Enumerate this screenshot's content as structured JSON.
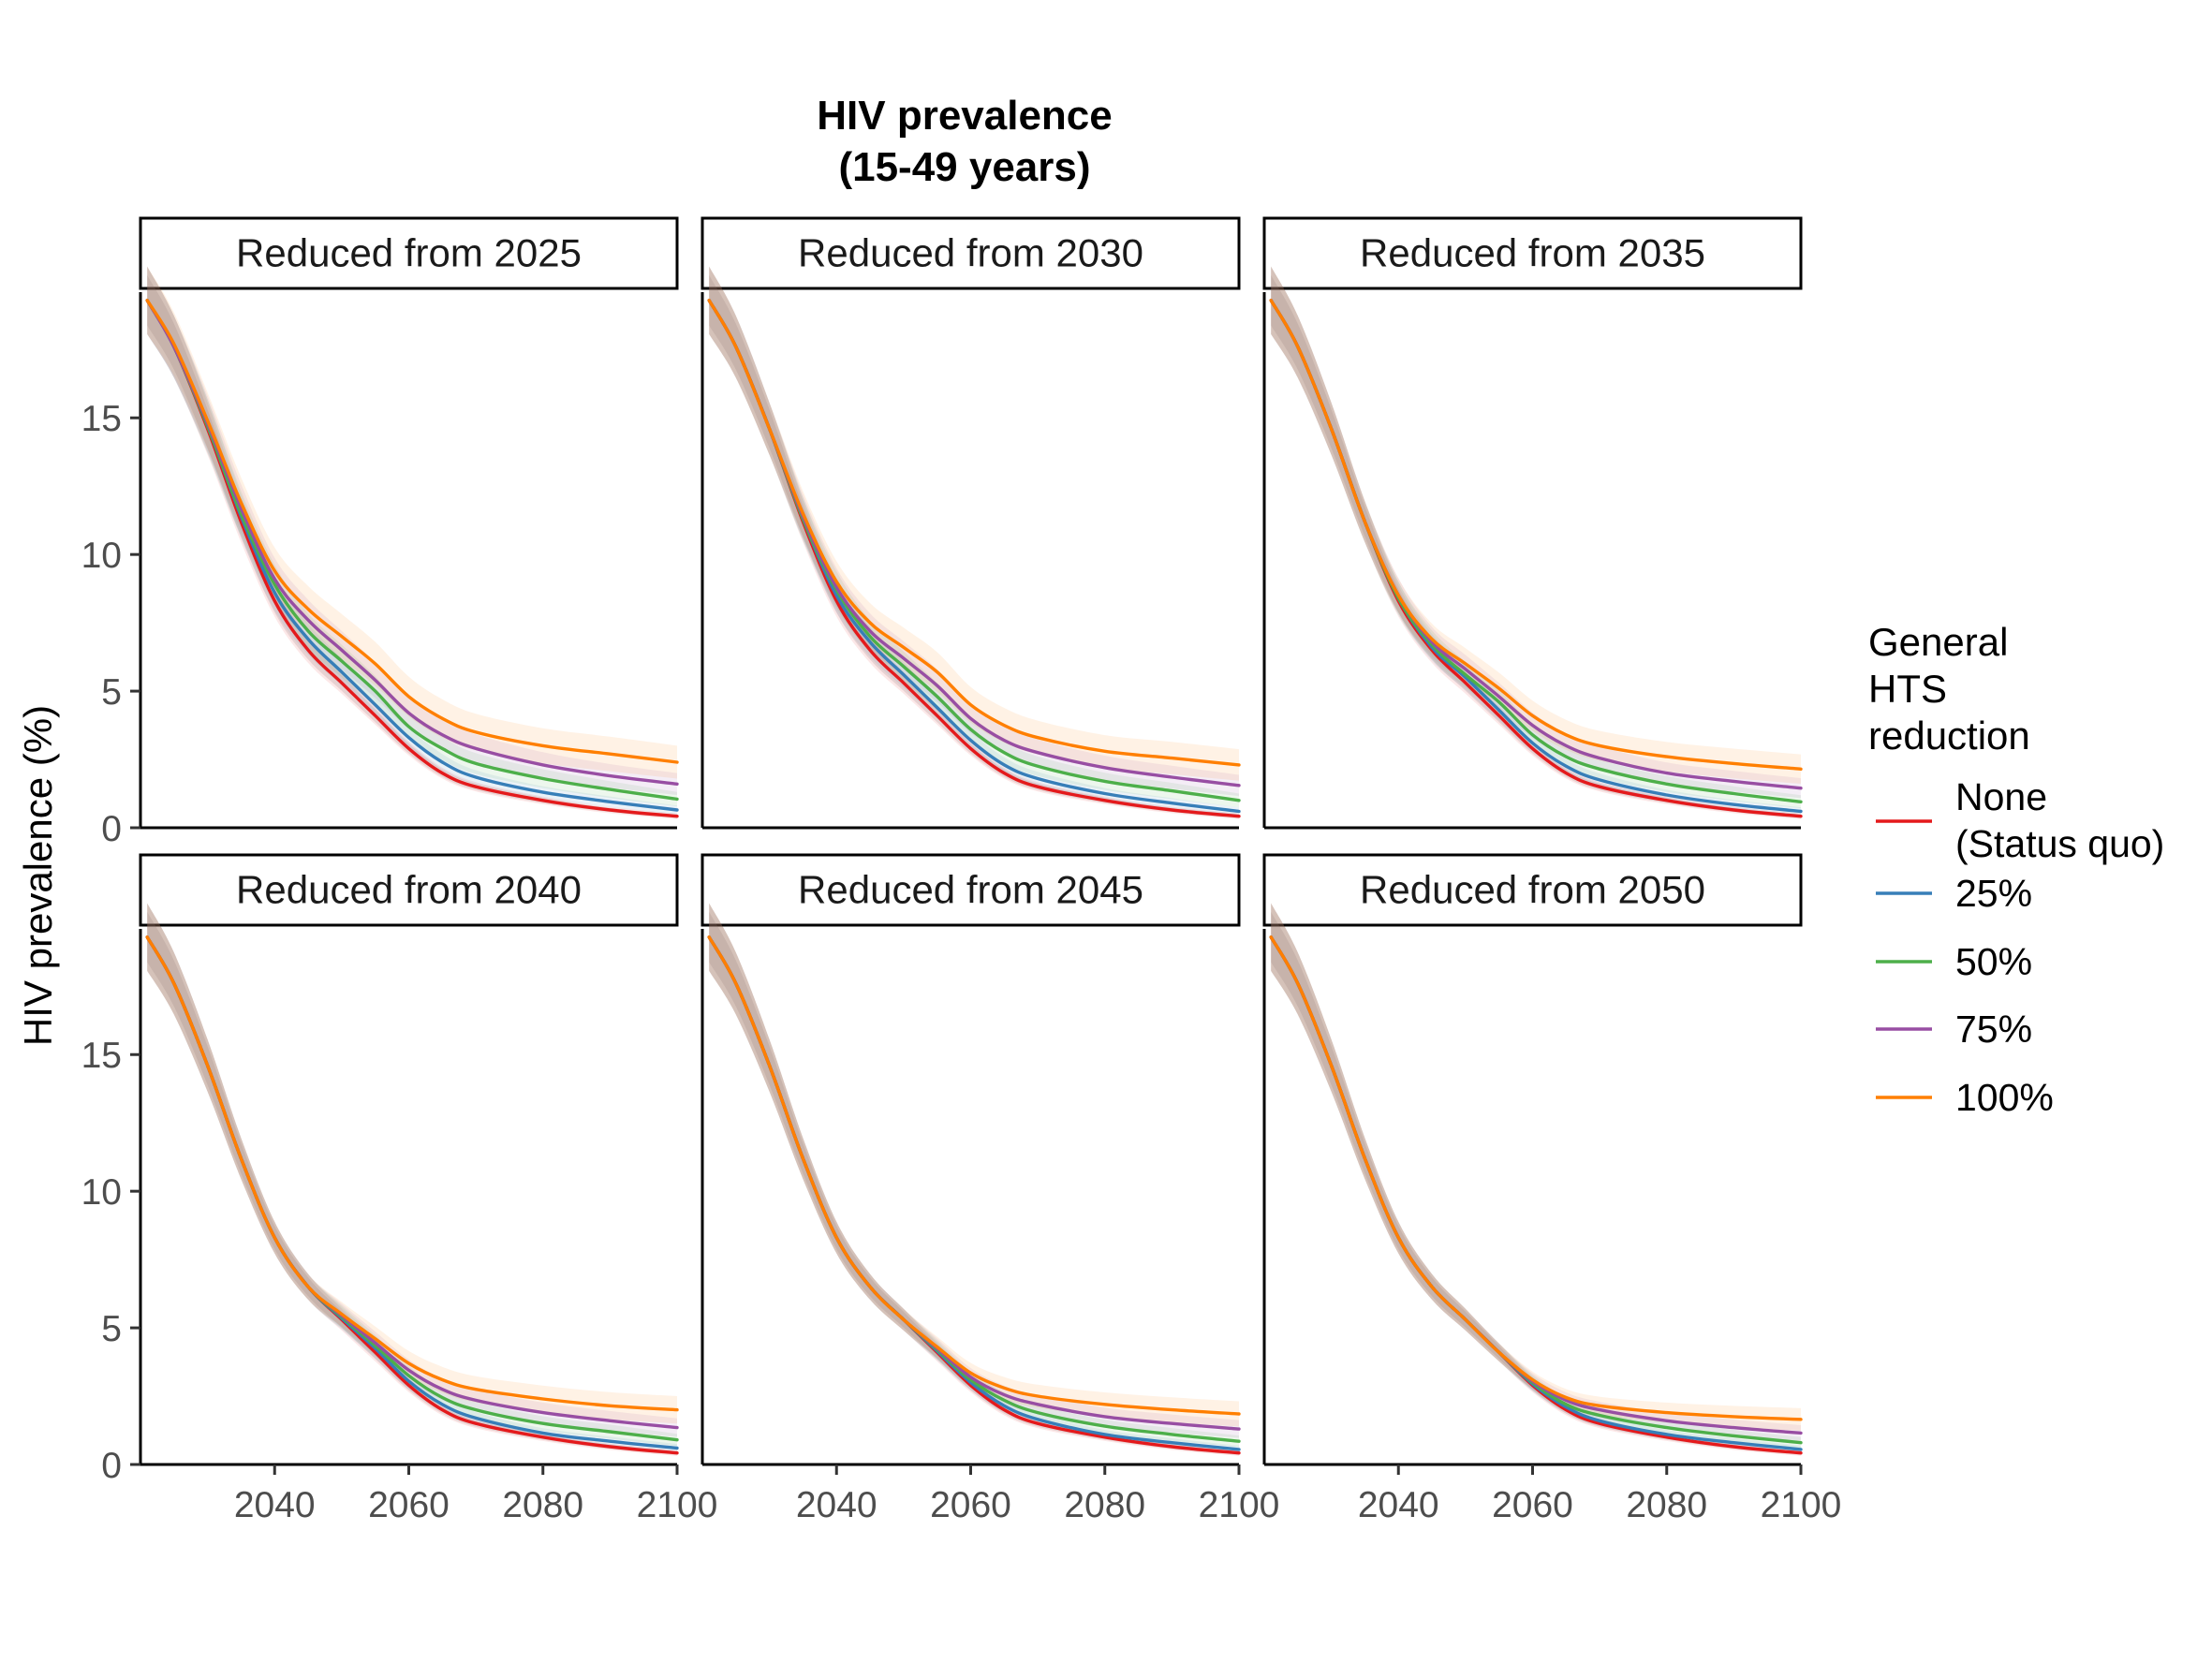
{
  "chart_data": {
    "type": "line",
    "title_lines": [
      "HIV prevalence",
      "(15-49 years)"
    ],
    "xlabel": "",
    "ylabel": "HIV prevalence (%)",
    "xlim": [
      2020,
      2100
    ],
    "ylim": [
      0,
      19.6
    ],
    "x_ticks": [
      2040,
      2060,
      2080,
      2100
    ],
    "x_tick_labels": [
      "2040",
      "2060",
      "2080",
      "2100"
    ],
    "y_ticks": [
      0,
      5,
      10,
      15
    ],
    "y_tick_labels": [
      "0",
      "5",
      "10",
      "15"
    ],
    "grid": false,
    "legend_position": "right",
    "legend_title_lines": [
      "General",
      "HTS",
      "reduction"
    ],
    "legend": [
      {
        "key": "none",
        "label_lines": [
          "None",
          "(Status quo)"
        ],
        "color": "#E41A1C"
      },
      {
        "key": "p25",
        "label_lines": [
          "25%"
        ],
        "color": "#377EB8"
      },
      {
        "key": "p50",
        "label_lines": [
          "50%"
        ],
        "color": "#4DAF4A"
      },
      {
        "key": "p75",
        "label_lines": [
          "75%"
        ],
        "color": "#984EA3"
      },
      {
        "key": "p100",
        "label_lines": [
          "100%"
        ],
        "color": "#FF7F00"
      }
    ],
    "x": [
      2021,
      2025,
      2030,
      2035,
      2040,
      2045,
      2050,
      2055,
      2060,
      2065,
      2070,
      2080,
      2090,
      2100
    ],
    "baseline": [
      19.3,
      17.6,
      14.6,
      11.2,
      8.3,
      6.5,
      5.3,
      4.1,
      2.9,
      2.0,
      1.5,
      1.0,
      0.65,
      0.42
    ],
    "panels": [
      {
        "strip": "Reduced from 2025",
        "series": [
          {
            "key": "none",
            "y": [
              19.3,
              17.6,
              14.6,
              11.2,
              8.3,
              6.5,
              5.3,
              4.1,
              2.9,
              2.0,
              1.5,
              1.0,
              0.65,
              0.42
            ]
          },
          {
            "key": "p25",
            "y": [
              19.3,
              17.6,
              14.7,
              11.4,
              8.6,
              6.9,
              5.7,
              4.5,
              3.3,
              2.4,
              1.85,
              1.3,
              0.95,
              0.65
            ]
          },
          {
            "key": "p50",
            "y": [
              19.3,
              17.6,
              14.7,
              11.5,
              8.9,
              7.2,
              6.1,
              5.0,
              3.7,
              2.9,
              2.35,
              1.8,
              1.4,
              1.05
            ]
          },
          {
            "key": "p75",
            "y": [
              19.3,
              17.6,
              14.8,
              11.7,
              9.1,
              7.6,
              6.5,
              5.4,
              4.2,
              3.4,
              2.9,
              2.3,
              1.9,
              1.6
            ]
          },
          {
            "key": "p100",
            "y": [
              19.3,
              17.7,
              14.9,
              11.9,
              9.4,
              8.0,
              7.0,
              6.0,
              4.8,
              4.0,
              3.5,
              3.0,
              2.7,
              2.4
            ]
          }
        ]
      },
      {
        "strip": "Reduced from 2030",
        "series": [
          {
            "key": "none",
            "y": [
              19.3,
              17.6,
              14.6,
              11.2,
              8.3,
              6.5,
              5.3,
              4.1,
              2.9,
              2.0,
              1.5,
              1.0,
              0.65,
              0.42
            ]
          },
          {
            "key": "p25",
            "y": [
              19.3,
              17.6,
              14.6,
              11.3,
              8.5,
              6.8,
              5.6,
              4.4,
              3.2,
              2.3,
              1.8,
              1.25,
              0.9,
              0.6
            ]
          },
          {
            "key": "p50",
            "y": [
              19.3,
              17.6,
              14.6,
              11.3,
              8.7,
              7.0,
              5.9,
              4.8,
              3.6,
              2.75,
              2.25,
              1.7,
              1.35,
              1.0
            ]
          },
          {
            "key": "p75",
            "y": [
              19.3,
              17.6,
              14.6,
              11.4,
              8.8,
              7.2,
              6.2,
              5.2,
              4.0,
              3.2,
              2.75,
              2.2,
              1.85,
              1.55
            ]
          },
          {
            "key": "p100",
            "y": [
              19.3,
              17.6,
              14.6,
              11.5,
              9.0,
              7.5,
              6.6,
              5.7,
              4.5,
              3.75,
              3.3,
              2.8,
              2.55,
              2.3
            ]
          }
        ]
      },
      {
        "strip": "Reduced from 2035",
        "series": [
          {
            "key": "none",
            "y": [
              19.3,
              17.6,
              14.6,
              11.2,
              8.3,
              6.5,
              5.3,
              4.1,
              2.9,
              2.0,
              1.5,
              1.0,
              0.65,
              0.42
            ]
          },
          {
            "key": "p25",
            "y": [
              19.3,
              17.6,
              14.6,
              11.2,
              8.4,
              6.6,
              5.5,
              4.3,
              3.1,
              2.25,
              1.75,
              1.2,
              0.85,
              0.6
            ]
          },
          {
            "key": "p50",
            "y": [
              19.3,
              17.6,
              14.6,
              11.2,
              8.4,
              6.7,
              5.6,
              4.6,
              3.4,
              2.6,
              2.15,
              1.6,
              1.25,
              0.95
            ]
          },
          {
            "key": "p75",
            "y": [
              19.3,
              17.6,
              14.6,
              11.2,
              8.5,
              6.8,
              5.8,
              4.8,
              3.75,
              3.0,
              2.55,
              2.0,
              1.7,
              1.45
            ]
          },
          {
            "key": "p100",
            "y": [
              19.3,
              17.6,
              14.6,
              11.2,
              8.5,
              6.9,
              6.0,
              5.1,
              4.1,
              3.4,
              3.0,
              2.6,
              2.35,
              2.15
            ]
          }
        ]
      },
      {
        "strip": "Reduced from 2040",
        "series": [
          {
            "key": "none",
            "y": [
              19.3,
              17.6,
              14.6,
              11.2,
              8.3,
              6.5,
              5.3,
              4.1,
              2.9,
              2.0,
              1.5,
              1.0,
              0.65,
              0.42
            ]
          },
          {
            "key": "p25",
            "y": [
              19.3,
              17.6,
              14.6,
              11.2,
              8.3,
              6.5,
              5.35,
              4.25,
              3.05,
              2.2,
              1.7,
              1.15,
              0.85,
              0.6
            ]
          },
          {
            "key": "p50",
            "y": [
              19.3,
              17.6,
              14.6,
              11.2,
              8.3,
              6.5,
              5.4,
              4.35,
              3.25,
              2.45,
              2.0,
              1.5,
              1.2,
              0.9
            ]
          },
          {
            "key": "p75",
            "y": [
              19.3,
              17.6,
              14.6,
              11.2,
              8.3,
              6.5,
              5.45,
              4.45,
              3.45,
              2.75,
              2.35,
              1.9,
              1.6,
              1.35
            ]
          },
          {
            "key": "p100",
            "y": [
              19.3,
              17.6,
              14.6,
              11.2,
              8.3,
              6.5,
              5.5,
              4.6,
              3.7,
              3.1,
              2.75,
              2.4,
              2.15,
              2.0
            ]
          }
        ]
      },
      {
        "strip": "Reduced from 2045",
        "series": [
          {
            "key": "none",
            "y": [
              19.3,
              17.6,
              14.6,
              11.2,
              8.3,
              6.5,
              5.3,
              4.1,
              2.9,
              2.0,
              1.5,
              1.0,
              0.65,
              0.42
            ]
          },
          {
            "key": "p25",
            "y": [
              19.3,
              17.6,
              14.6,
              11.2,
              8.3,
              6.5,
              5.3,
              4.15,
              3.0,
              2.15,
              1.65,
              1.1,
              0.8,
              0.55
            ]
          },
          {
            "key": "p50",
            "y": [
              19.3,
              17.6,
              14.6,
              11.2,
              8.3,
              6.5,
              5.3,
              4.2,
              3.1,
              2.35,
              1.9,
              1.4,
              1.1,
              0.85
            ]
          },
          {
            "key": "p75",
            "y": [
              19.3,
              17.6,
              14.6,
              11.2,
              8.3,
              6.5,
              5.3,
              4.25,
              3.2,
              2.55,
              2.2,
              1.75,
              1.5,
              1.3
            ]
          },
          {
            "key": "p100",
            "y": [
              19.3,
              17.6,
              14.6,
              11.2,
              8.3,
              6.5,
              5.3,
              4.3,
              3.35,
              2.8,
              2.5,
              2.2,
              2.0,
              1.85
            ]
          }
        ]
      },
      {
        "strip": "Reduced from 2050",
        "series": [
          {
            "key": "none",
            "y": [
              19.3,
              17.6,
              14.6,
              11.2,
              8.3,
              6.5,
              5.3,
              4.1,
              2.9,
              2.0,
              1.5,
              1.0,
              0.65,
              0.42
            ]
          },
          {
            "key": "p25",
            "y": [
              19.3,
              17.6,
              14.6,
              11.2,
              8.3,
              6.5,
              5.3,
              4.1,
              2.95,
              2.1,
              1.6,
              1.1,
              0.8,
              0.55
            ]
          },
          {
            "key": "p50",
            "y": [
              19.3,
              17.6,
              14.6,
              11.2,
              8.3,
              6.5,
              5.3,
              4.1,
              3.0,
              2.2,
              1.8,
              1.35,
              1.05,
              0.8
            ]
          },
          {
            "key": "p75",
            "y": [
              19.3,
              17.6,
              14.6,
              11.2,
              8.3,
              6.5,
              5.3,
              4.1,
              3.05,
              2.35,
              2.0,
              1.6,
              1.35,
              1.15
            ]
          },
          {
            "key": "p100",
            "y": [
              19.3,
              17.6,
              14.6,
              11.2,
              8.3,
              6.5,
              5.3,
              4.1,
              3.1,
              2.45,
              2.15,
              1.9,
              1.75,
              1.65
            ]
          }
        ]
      }
    ]
  }
}
